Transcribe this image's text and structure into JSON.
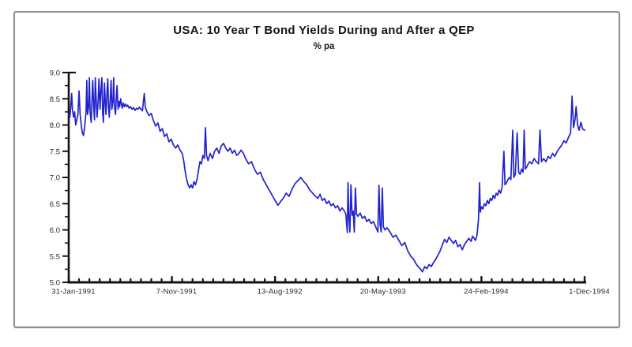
{
  "chart_data": {
    "type": "line",
    "title": "USA: 10 Year T Bond Yields During and After a QEP",
    "subtitle": "% pa",
    "xlabel": "",
    "ylabel": "",
    "grid": false,
    "legend_position": "none",
    "ylim": [
      5.0,
      9.0
    ],
    "y_ticks": [
      {
        "v": 9.0,
        "label": "9.0"
      },
      {
        "v": 8.5,
        "label": "8.5"
      },
      {
        "v": 8.0,
        "label": "8.0"
      },
      {
        "v": 7.5,
        "label": "7.5"
      },
      {
        "v": 7.0,
        "label": "7.0"
      },
      {
        "v": 6.5,
        "label": "6.5"
      },
      {
        "v": 6.0,
        "label": "6.0"
      },
      {
        "v": 5.5,
        "label": "5.5"
      },
      {
        "v": 5.0,
        "label": "5.0"
      }
    ],
    "y_minor_step": 0.25,
    "x_range_days": [
      0,
      1400
    ],
    "x_ticks": [
      {
        "day": 0,
        "label": "31-Jan-1991"
      },
      {
        "day": 280,
        "label": "7-Nov-1991"
      },
      {
        "day": 560,
        "label": "13-Aug-1992"
      },
      {
        "day": 840,
        "label": "20-May-1993"
      },
      {
        "day": 1120,
        "label": "24-Feb-1994"
      },
      {
        "day": 1400,
        "label": "1-Dec-1994"
      }
    ],
    "x_minor_step_days": 28,
    "colors": {
      "line": "#2323cd",
      "axis": "#141414",
      "tick_label": "#2a2a2a",
      "frame_border": "#8f8f8f"
    },
    "series": [
      {
        "name": "10 Year T Bond Yield (% pa)",
        "points": [
          [
            0,
            8.2
          ],
          [
            3,
            8.15
          ],
          [
            5,
            8.3
          ],
          [
            8,
            8.6
          ],
          [
            10,
            8.3
          ],
          [
            13,
            8.15
          ],
          [
            16,
            8.25
          ],
          [
            19,
            8.0
          ],
          [
            22,
            8.1
          ],
          [
            25,
            8.2
          ],
          [
            28,
            8.65
          ],
          [
            31,
            8.2
          ],
          [
            34,
            8.0
          ],
          [
            37,
            7.85
          ],
          [
            40,
            7.8
          ],
          [
            43,
            7.95
          ],
          [
            45,
            8.1
          ],
          [
            47,
            8.25
          ],
          [
            49,
            8.85
          ],
          [
            51,
            8.2
          ],
          [
            54,
            8.35
          ],
          [
            56,
            8.9
          ],
          [
            58,
            8.25
          ],
          [
            61,
            8.05
          ],
          [
            63,
            8.45
          ],
          [
            65,
            8.85
          ],
          [
            68,
            8.3
          ],
          [
            70,
            8.1
          ],
          [
            72,
            8.9
          ],
          [
            75,
            8.4
          ],
          [
            77,
            8.15
          ],
          [
            80,
            8.5
          ],
          [
            82,
            8.88
          ],
          [
            85,
            8.3
          ],
          [
            87,
            8.6
          ],
          [
            90,
            8.9
          ],
          [
            92,
            8.25
          ],
          [
            94,
            8.05
          ],
          [
            97,
            8.8
          ],
          [
            99,
            8.45
          ],
          [
            101,
            8.2
          ],
          [
            104,
            8.65
          ],
          [
            106,
            8.88
          ],
          [
            108,
            8.35
          ],
          [
            110,
            8.15
          ],
          [
            113,
            8.55
          ],
          [
            115,
            8.85
          ],
          [
            117,
            8.3
          ],
          [
            120,
            8.45
          ],
          [
            122,
            8.9
          ],
          [
            124,
            8.35
          ],
          [
            127,
            8.2
          ],
          [
            129,
            8.5
          ],
          [
            131,
            8.75
          ],
          [
            134,
            8.3
          ],
          [
            136,
            8.45
          ],
          [
            138,
            8.35
          ],
          [
            141,
            8.5
          ],
          [
            143,
            8.4
          ],
          [
            145,
            8.32
          ],
          [
            148,
            8.42
          ],
          [
            151,
            8.35
          ],
          [
            154,
            8.4
          ],
          [
            157,
            8.35
          ],
          [
            160,
            8.38
          ],
          [
            164,
            8.32
          ],
          [
            168,
            8.35
          ],
          [
            172,
            8.3
          ],
          [
            176,
            8.33
          ],
          [
            180,
            8.28
          ],
          [
            184,
            8.32
          ],
          [
            188,
            8.3
          ],
          [
            192,
            8.34
          ],
          [
            196,
            8.3
          ],
          [
            200,
            8.27
          ],
          [
            205,
            8.6
          ],
          [
            208,
            8.33
          ],
          [
            212,
            8.26
          ],
          [
            218,
            8.18
          ],
          [
            224,
            8.22
          ],
          [
            230,
            8.08
          ],
          [
            236,
            7.98
          ],
          [
            242,
            8.04
          ],
          [
            248,
            7.88
          ],
          [
            254,
            7.93
          ],
          [
            260,
            7.78
          ],
          [
            266,
            7.83
          ],
          [
            272,
            7.68
          ],
          [
            278,
            7.73
          ],
          [
            284,
            7.62
          ],
          [
            290,
            7.56
          ],
          [
            296,
            7.62
          ],
          [
            302,
            7.52
          ],
          [
            308,
            7.46
          ],
          [
            312,
            7.32
          ],
          [
            316,
            7.12
          ],
          [
            320,
            6.96
          ],
          [
            324,
            6.86
          ],
          [
            328,
            6.8
          ],
          [
            332,
            6.86
          ],
          [
            336,
            6.8
          ],
          [
            340,
            6.92
          ],
          [
            344,
            6.86
          ],
          [
            348,
            6.96
          ],
          [
            352,
            7.12
          ],
          [
            356,
            7.3
          ],
          [
            360,
            7.26
          ],
          [
            364,
            7.42
          ],
          [
            368,
            7.36
          ],
          [
            371,
            7.95
          ],
          [
            374,
            7.42
          ],
          [
            378,
            7.32
          ],
          [
            384,
            7.46
          ],
          [
            390,
            7.36
          ],
          [
            396,
            7.5
          ],
          [
            402,
            7.56
          ],
          [
            408,
            7.46
          ],
          [
            414,
            7.6
          ],
          [
            420,
            7.65
          ],
          [
            426,
            7.56
          ],
          [
            432,
            7.5
          ],
          [
            438,
            7.56
          ],
          [
            444,
            7.46
          ],
          [
            450,
            7.52
          ],
          [
            456,
            7.42
          ],
          [
            462,
            7.46
          ],
          [
            468,
            7.52
          ],
          [
            474,
            7.46
          ],
          [
            480,
            7.36
          ],
          [
            488,
            7.26
          ],
          [
            496,
            7.3
          ],
          [
            504,
            7.16
          ],
          [
            512,
            7.06
          ],
          [
            520,
            7.1
          ],
          [
            528,
            6.96
          ],
          [
            536,
            6.86
          ],
          [
            544,
            6.76
          ],
          [
            552,
            6.66
          ],
          [
            560,
            6.56
          ],
          [
            568,
            6.47
          ],
          [
            576,
            6.55
          ],
          [
            582,
            6.6
          ],
          [
            590,
            6.7
          ],
          [
            598,
            6.64
          ],
          [
            606,
            6.78
          ],
          [
            614,
            6.88
          ],
          [
            622,
            6.94
          ],
          [
            630,
            7.0
          ],
          [
            638,
            6.92
          ],
          [
            646,
            6.86
          ],
          [
            654,
            6.76
          ],
          [
            662,
            6.7
          ],
          [
            670,
            6.64
          ],
          [
            676,
            6.6
          ],
          [
            682,
            6.68
          ],
          [
            688,
            6.56
          ],
          [
            694,
            6.6
          ],
          [
            700,
            6.5
          ],
          [
            706,
            6.55
          ],
          [
            712,
            6.46
          ],
          [
            718,
            6.5
          ],
          [
            724,
            6.42
          ],
          [
            730,
            6.46
          ],
          [
            736,
            6.36
          ],
          [
            742,
            6.42
          ],
          [
            748,
            6.36
          ],
          [
            752,
            6.3
          ],
          [
            756,
            5.95
          ],
          [
            758,
            6.9
          ],
          [
            760,
            6.3
          ],
          [
            763,
            5.96
          ],
          [
            766,
            6.86
          ],
          [
            769,
            6.28
          ],
          [
            772,
            6.36
          ],
          [
            775,
            5.96
          ],
          [
            778,
            6.8
          ],
          [
            781,
            6.3
          ],
          [
            785,
            6.26
          ],
          [
            791,
            6.32
          ],
          [
            797,
            6.22
          ],
          [
            803,
            6.26
          ],
          [
            809,
            6.16
          ],
          [
            815,
            6.2
          ],
          [
            821,
            6.12
          ],
          [
            827,
            6.16
          ],
          [
            833,
            6.06
          ],
          [
            839,
            5.96
          ],
          [
            842,
            6.85
          ],
          [
            845,
            6.1
          ],
          [
            848,
            5.96
          ],
          [
            851,
            6.8
          ],
          [
            854,
            6.06
          ],
          [
            858,
            6.0
          ],
          [
            864,
            6.04
          ],
          [
            872,
            5.96
          ],
          [
            880,
            5.86
          ],
          [
            888,
            5.9
          ],
          [
            896,
            5.8
          ],
          [
            904,
            5.7
          ],
          [
            912,
            5.76
          ],
          [
            920,
            5.6
          ],
          [
            928,
            5.5
          ],
          [
            936,
            5.44
          ],
          [
            942,
            5.36
          ],
          [
            948,
            5.3
          ],
          [
            954,
            5.26
          ],
          [
            960,
            5.2
          ],
          [
            966,
            5.3
          ],
          [
            972,
            5.26
          ],
          [
            978,
            5.34
          ],
          [
            984,
            5.3
          ],
          [
            990,
            5.38
          ],
          [
            996,
            5.44
          ],
          [
            1002,
            5.52
          ],
          [
            1008,
            5.6
          ],
          [
            1014,
            5.72
          ],
          [
            1020,
            5.82
          ],
          [
            1026,
            5.76
          ],
          [
            1032,
            5.86
          ],
          [
            1038,
            5.8
          ],
          [
            1044,
            5.74
          ],
          [
            1050,
            5.8
          ],
          [
            1056,
            5.68
          ],
          [
            1062,
            5.72
          ],
          [
            1068,
            5.62
          ],
          [
            1074,
            5.72
          ],
          [
            1080,
            5.78
          ],
          [
            1086,
            5.84
          ],
          [
            1092,
            5.78
          ],
          [
            1096,
            5.88
          ],
          [
            1100,
            5.84
          ],
          [
            1104,
            5.8
          ],
          [
            1108,
            5.9
          ],
          [
            1112,
            6.2
          ],
          [
            1115,
            6.9
          ],
          [
            1117,
            6.34
          ],
          [
            1120,
            6.44
          ],
          [
            1124,
            6.4
          ],
          [
            1128,
            6.5
          ],
          [
            1132,
            6.46
          ],
          [
            1136,
            6.56
          ],
          [
            1140,
            6.5
          ],
          [
            1144,
            6.6
          ],
          [
            1148,
            6.56
          ],
          [
            1152,
            6.66
          ],
          [
            1156,
            6.6
          ],
          [
            1160,
            6.7
          ],
          [
            1164,
            6.66
          ],
          [
            1168,
            6.76
          ],
          [
            1172,
            6.7
          ],
          [
            1176,
            6.8
          ],
          [
            1181,
            7.5
          ],
          [
            1184,
            6.86
          ],
          [
            1188,
            6.9
          ],
          [
            1192,
            6.96
          ],
          [
            1196,
            7.0
          ],
          [
            1200,
            6.96
          ],
          [
            1205,
            7.9
          ],
          [
            1208,
            7.0
          ],
          [
            1212,
            7.06
          ],
          [
            1217,
            7.85
          ],
          [
            1221,
            7.1
          ],
          [
            1225,
            7.06
          ],
          [
            1229,
            7.16
          ],
          [
            1233,
            7.1
          ],
          [
            1236,
            7.9
          ],
          [
            1239,
            7.16
          ],
          [
            1243,
            7.2
          ],
          [
            1247,
            7.26
          ],
          [
            1251,
            7.3
          ],
          [
            1257,
            7.26
          ],
          [
            1263,
            7.36
          ],
          [
            1269,
            7.3
          ],
          [
            1275,
            7.26
          ],
          [
            1279,
            7.9
          ],
          [
            1283,
            7.3
          ],
          [
            1289,
            7.36
          ],
          [
            1295,
            7.3
          ],
          [
            1301,
            7.4
          ],
          [
            1307,
            7.36
          ],
          [
            1313,
            7.46
          ],
          [
            1319,
            7.4
          ],
          [
            1326,
            7.5
          ],
          [
            1332,
            7.56
          ],
          [
            1338,
            7.62
          ],
          [
            1344,
            7.7
          ],
          [
            1350,
            7.66
          ],
          [
            1356,
            7.76
          ],
          [
            1362,
            7.85
          ],
          [
            1366,
            8.55
          ],
          [
            1370,
            7.95
          ],
          [
            1374,
            8.1
          ],
          [
            1377,
            8.35
          ],
          [
            1381,
            8.0
          ],
          [
            1385,
            7.9
          ],
          [
            1390,
            8.05
          ],
          [
            1395,
            7.92
          ],
          [
            1400,
            7.9
          ]
        ]
      }
    ]
  }
}
